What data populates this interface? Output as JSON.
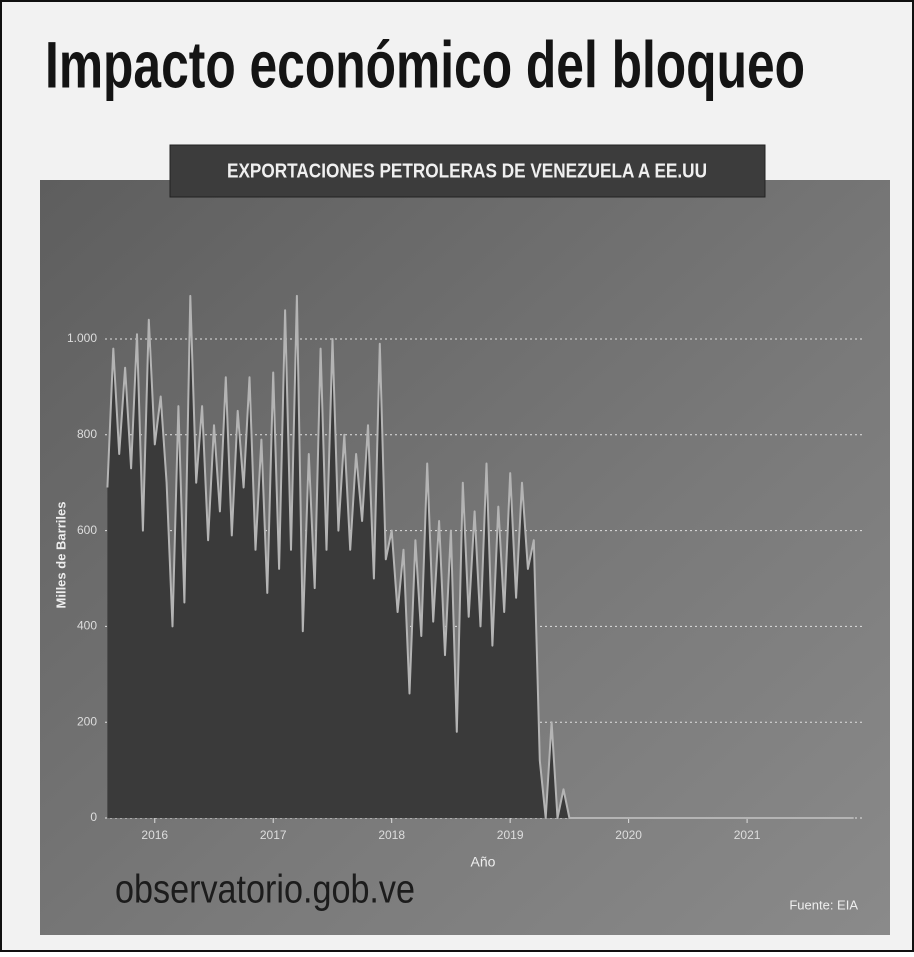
{
  "chart_data": {
    "type": "area-line",
    "title": "Impacto económico del bloqueo",
    "subtitle": "EXPORTACIONES PETROLERAS DE VENEZUELA A EE.UU",
    "ylabel": "Milles de Barriles",
    "xlabel": "Año",
    "watermark": "observatorio.gob.ve",
    "source": "Fuente: EIA",
    "x": [
      2015.6,
      2015.65,
      2015.7,
      2015.75,
      2015.8,
      2015.85,
      2015.9,
      2015.95,
      2016.0,
      2016.05,
      2016.1,
      2016.15,
      2016.2,
      2016.25,
      2016.3,
      2016.35,
      2016.4,
      2016.45,
      2016.5,
      2016.55,
      2016.6,
      2016.65,
      2016.7,
      2016.75,
      2016.8,
      2016.85,
      2016.9,
      2016.95,
      2017.0,
      2017.05,
      2017.1,
      2017.15,
      2017.2,
      2017.25,
      2017.3,
      2017.35,
      2017.4,
      2017.45,
      2017.5,
      2017.55,
      2017.6,
      2017.65,
      2017.7,
      2017.75,
      2017.8,
      2017.85,
      2017.9,
      2017.95,
      2018.0,
      2018.05,
      2018.1,
      2018.15,
      2018.2,
      2018.25,
      2018.3,
      2018.35,
      2018.4,
      2018.45,
      2018.5,
      2018.55,
      2018.6,
      2018.65,
      2018.7,
      2018.75,
      2018.8,
      2018.85,
      2018.9,
      2018.95,
      2019.0,
      2019.05,
      2019.1,
      2019.15,
      2019.2,
      2019.25,
      2019.3,
      2019.35,
      2019.4,
      2019.45,
      2019.5,
      2021.9
    ],
    "values": [
      690,
      980,
      760,
      940,
      730,
      1010,
      600,
      1040,
      780,
      880,
      700,
      400,
      860,
      450,
      1090,
      700,
      860,
      580,
      820,
      640,
      920,
      590,
      850,
      690,
      920,
      560,
      790,
      470,
      930,
      520,
      1060,
      560,
      1090,
      390,
      760,
      480,
      980,
      560,
      1000,
      600,
      800,
      560,
      760,
      620,
      820,
      500,
      990,
      540,
      600,
      430,
      560,
      260,
      580,
      380,
      740,
      410,
      620,
      340,
      600,
      180,
      700,
      420,
      640,
      400,
      740,
      360,
      650,
      430,
      720,
      460,
      700,
      520,
      580,
      120,
      0,
      200,
      0,
      60,
      0,
      0
    ],
    "fill_color": "#3a3a3a",
    "line_color": "#b4b4b4",
    "xlim": [
      2015.58,
      2021.97
    ],
    "ylim": [
      0,
      1000
    ],
    "xticks": [
      2016,
      2017,
      2018,
      2019,
      2020,
      2021
    ],
    "yticks": [
      0,
      200,
      400,
      600,
      800,
      {
        "value": 1000,
        "label": "1.000"
      }
    ],
    "grid": true
  }
}
